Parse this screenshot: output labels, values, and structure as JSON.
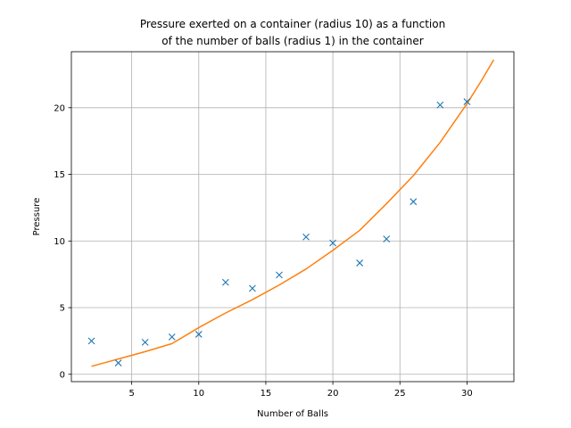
{
  "chart_data": {
    "type": "scatter",
    "title_lines": [
      "Pressure exerted on a container (radius 10) as a function",
      "of the number of balls (radius 1) in the container"
    ],
    "xlabel": "Number of Balls",
    "ylabel": "Pressure",
    "xlim": [
      0.5,
      33.5
    ],
    "ylim": [
      -0.55,
      24.2
    ],
    "x_ticks": [
      5,
      10,
      15,
      20,
      25,
      30
    ],
    "x_tick_labels": [
      "5",
      "10",
      "15",
      "20",
      "25",
      "30"
    ],
    "y_ticks": [
      0,
      5,
      10,
      15,
      20
    ],
    "y_tick_labels": [
      "0",
      "5",
      "10",
      "15",
      "20"
    ],
    "grid": true,
    "series": [
      {
        "kind": "scatter",
        "marker": "x",
        "color": "#1f77b4",
        "x": [
          2,
          4,
          6,
          8,
          10,
          12,
          14,
          16,
          18,
          20,
          22,
          24,
          26,
          28,
          30
        ],
        "y": [
          2.5,
          0.85,
          2.4,
          2.8,
          3.0,
          6.9,
          6.45,
          7.45,
          10.3,
          9.85,
          8.35,
          10.15,
          12.95,
          20.2,
          20.45
        ]
      },
      {
        "kind": "line",
        "color": "#ff7f0e",
        "x": [
          2,
          4,
          6,
          8,
          10,
          12,
          14,
          16,
          18,
          20,
          22,
          24,
          26,
          28,
          30,
          31,
          32
        ],
        "y": [
          0.6,
          1.15,
          1.7,
          2.3,
          3.5,
          4.6,
          5.6,
          6.7,
          7.9,
          9.3,
          10.8,
          12.8,
          14.9,
          17.4,
          20.3,
          21.9,
          23.6
        ]
      }
    ]
  }
}
